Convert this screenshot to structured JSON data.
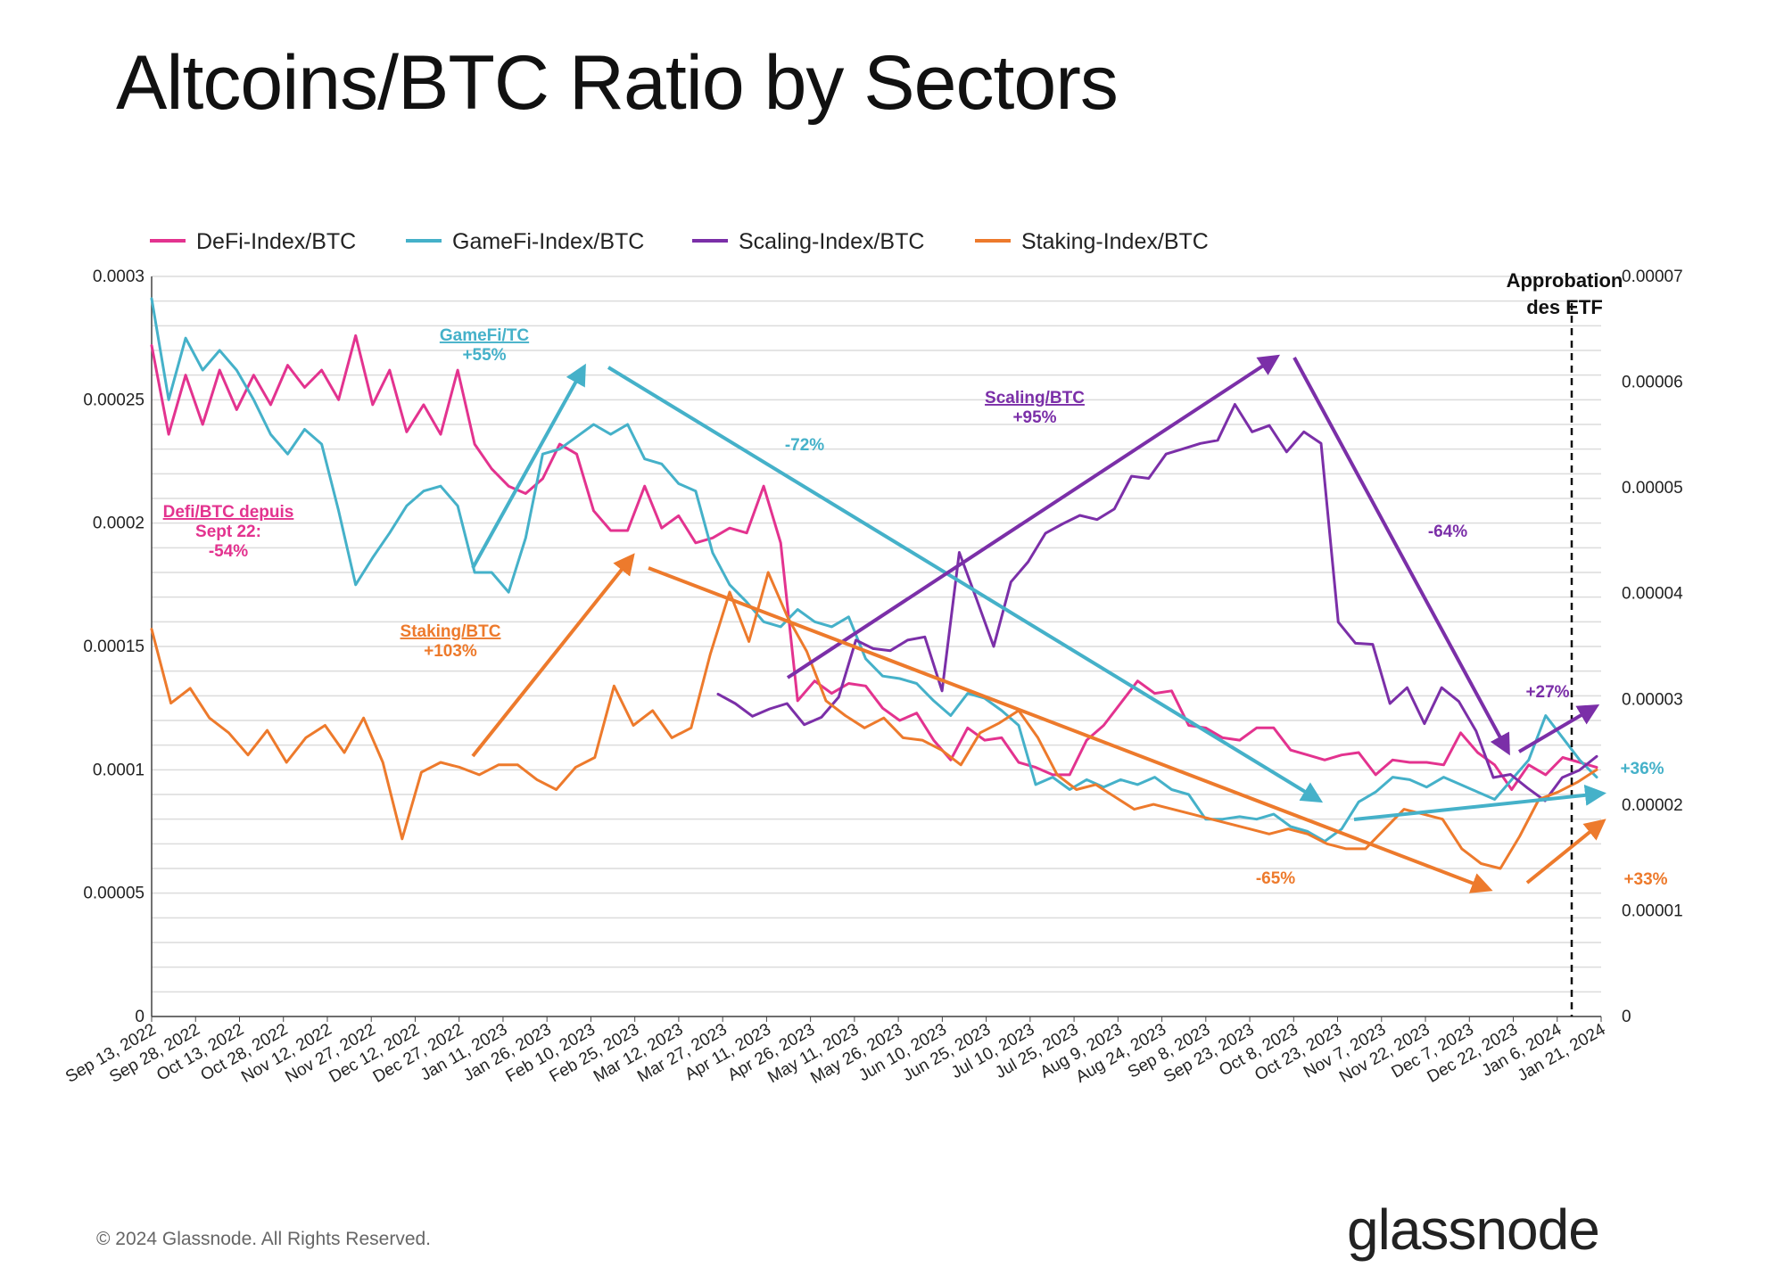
{
  "title": "Altcoins/BTC Ratio by Sectors",
  "footer": "© 2024 Glassnode. All Rights Reserved.",
  "logo": "glassnode",
  "chart_data": {
    "type": "line",
    "left_axis": {
      "ticks": [
        "0",
        "0.00005",
        "0.0001",
        "0.00015",
        "0.0002",
        "0.00025",
        "0.0003"
      ],
      "ylim": [
        0,
        0.0003
      ]
    },
    "right_axis": {
      "ticks": [
        "0",
        "0.00001",
        "0.00002",
        "0.00003",
        "0.00004",
        "0.00005",
        "0.00006",
        "0.00007"
      ],
      "ylim": [
        0,
        7e-05
      ]
    },
    "x_ticks": [
      "Sep 13, 2022",
      "Sep 28, 2022",
      "Oct 13, 2022",
      "Oct 28, 2022",
      "Nov 12, 2022",
      "Nov 27, 2022",
      "Dec 12, 2022",
      "Dec 27, 2022",
      "Jan 11, 2023",
      "Jan 26, 2023",
      "Feb 10, 2023",
      "Feb 25, 2023",
      "Mar 12, 2023",
      "Mar 27, 2023",
      "Apr 11, 2023",
      "Apr 26, 2023",
      "May 11, 2023",
      "May 26, 2023",
      "Jun 10, 2023",
      "Jun 25, 2023",
      "Jul 10, 2023",
      "Jul 25, 2023",
      "Aug 9, 2023",
      "Aug 24, 2023",
      "Sep 8, 2023",
      "Sep 23, 2023",
      "Oct 8, 2023",
      "Oct 23, 2023",
      "Nov 7, 2023",
      "Nov 22, 2023",
      "Dec 7, 2023",
      "Dec 22, 2023",
      "Jan 6, 2024",
      "Jan 21, 2024"
    ],
    "grid": true,
    "legend_position": "top-left",
    "series": [
      {
        "name": "DeFi-Index/BTC",
        "color": "#e3338f",
        "axis": "left",
        "values": [
          0.000272,
          0.000236,
          0.00026,
          0.00024,
          0.000262,
          0.000246,
          0.00026,
          0.000248,
          0.000264,
          0.000255,
          0.000262,
          0.00025,
          0.000276,
          0.000248,
          0.000262,
          0.000237,
          0.000248,
          0.000236,
          0.000262,
          0.000232,
          0.000222,
          0.000215,
          0.000212,
          0.000218,
          0.000232,
          0.000228,
          0.000205,
          0.000197,
          0.000197,
          0.000215,
          0.000198,
          0.000203,
          0.000192,
          0.000194,
          0.000198,
          0.000196,
          0.000215,
          0.000192,
          0.000128,
          0.000136,
          0.000131,
          0.000135,
          0.000134,
          0.000125,
          0.00012,
          0.000123,
          0.000112,
          0.000104,
          0.000117,
          0.000112,
          0.000113,
          0.000103,
          0.000101,
          9.8e-05,
          9.8e-05,
          0.000112,
          0.000118,
          0.000127,
          0.000136,
          0.000131,
          0.000132,
          0.000118,
          0.000117,
          0.000113,
          0.000112,
          0.000117,
          0.000117,
          0.000108,
          0.000106,
          0.000104,
          0.000106,
          0.000107,
          9.8e-05,
          0.000104,
          0.000103,
          0.000103,
          0.000102,
          0.000115,
          0.000107,
          0.000102,
          9.2e-05,
          0.000102,
          9.8e-05,
          0.000105,
          0.000103,
          0.000101
        ]
      },
      {
        "name": "GameFi-Index/BTC",
        "color": "#45b1c9",
        "axis": "left",
        "values": [
          0.000291,
          0.00025,
          0.000275,
          0.000262,
          0.00027,
          0.000262,
          0.00025,
          0.000236,
          0.000228,
          0.000238,
          0.000232,
          0.000205,
          0.000175,
          0.000186,
          0.000196,
          0.000207,
          0.000213,
          0.000215,
          0.000207,
          0.00018,
          0.00018,
          0.000172,
          0.000194,
          0.000228,
          0.00023,
          0.000235,
          0.00024,
          0.000236,
          0.00024,
          0.000226,
          0.000224,
          0.000216,
          0.000213,
          0.000188,
          0.000175,
          0.000168,
          0.00016,
          0.000158,
          0.000165,
          0.00016,
          0.000158,
          0.000162,
          0.000145,
          0.000138,
          0.000137,
          0.000135,
          0.000128,
          0.000122,
          0.000131,
          0.000129,
          0.000124,
          0.000118,
          9.4e-05,
          9.7e-05,
          9.2e-05,
          9.6e-05,
          9.3e-05,
          9.6e-05,
          9.4e-05,
          9.7e-05,
          9.2e-05,
          9e-05,
          8e-05,
          8e-05,
          8.1e-05,
          8e-05,
          8.2e-05,
          7.7e-05,
          7.5e-05,
          7.1e-05,
          7.6e-05,
          8.7e-05,
          9.1e-05,
          9.7e-05,
          9.6e-05,
          9.3e-05,
          9.7e-05,
          9.4e-05,
          9.1e-05,
          8.8e-05,
          9.6e-05,
          0.000104,
          0.000122,
          0.000113,
          0.000104,
          9.7e-05
        ]
      },
      {
        "name": "Scaling-Index/BTC",
        "color": "#7b2fa8",
        "axis": "right",
        "values": [
          3.05e-05,
          2.96e-05,
          2.84e-05,
          2.91e-05,
          2.96e-05,
          2.76e-05,
          2.83e-05,
          3.02e-05,
          3.56e-05,
          3.48e-05,
          3.46e-05,
          3.56e-05,
          3.59e-05,
          3.08e-05,
          4.39e-05,
          3.95e-05,
          3.5e-05,
          4.11e-05,
          4.3e-05,
          4.57e-05,
          4.66e-05,
          4.74e-05,
          4.7e-05,
          4.8e-05,
          5.11e-05,
          5.09e-05,
          5.32e-05,
          5.37e-05,
          5.42e-05,
          5.45e-05,
          5.79e-05,
          5.53e-05,
          5.59e-05,
          5.34e-05,
          5.53e-05,
          5.42e-05,
          3.73e-05,
          3.53e-05,
          3.52e-05,
          2.96e-05,
          3.11e-05,
          2.77e-05,
          3.11e-05,
          2.98e-05,
          2.7e-05,
          2.26e-05,
          2.29e-05,
          2.16e-05,
          2.04e-05,
          2.26e-05,
          2.33e-05,
          2.46e-05
        ]
      },
      {
        "name": "Staking-Index/BTC",
        "color": "#ed7a2c",
        "axis": "left",
        "values": [
          0.000157,
          0.000127,
          0.000133,
          0.000121,
          0.000115,
          0.000106,
          0.000116,
          0.000103,
          0.000113,
          0.000118,
          0.000107,
          0.000121,
          0.000103,
          7.2e-05,
          9.9e-05,
          0.000103,
          0.000101,
          9.8e-05,
          0.000102,
          0.000102,
          9.6e-05,
          9.2e-05,
          0.000101,
          0.000105,
          0.000134,
          0.000118,
          0.000124,
          0.000113,
          0.000117,
          0.000147,
          0.000172,
          0.000152,
          0.00018,
          0.000162,
          0.000148,
          0.000128,
          0.000122,
          0.000117,
          0.000121,
          0.000113,
          0.000112,
          0.000108,
          0.000102,
          0.000115,
          0.000119,
          0.000124,
          0.000113,
          9.8e-05,
          9.2e-05,
          9.4e-05,
          8.9e-05,
          8.4e-05,
          8.6e-05,
          8.4e-05,
          8.2e-05,
          8e-05,
          7.8e-05,
          7.6e-05,
          7.4e-05,
          7.6e-05,
          7.4e-05,
          7e-05,
          6.8e-05,
          6.8e-05,
          7.6e-05,
          8.4e-05,
          8.2e-05,
          8e-05,
          6.8e-05,
          6.2e-05,
          6e-05,
          7.3e-05,
          8.8e-05,
          9.1e-05,
          9.5e-05,
          0.0001
        ]
      }
    ],
    "annotations": [
      {
        "lines": [
          "GameFi/TC",
          "+55%"
        ],
        "color": "#45b1c9",
        "underline": true
      },
      {
        "lines": [
          "-72%"
        ],
        "color": "#45b1c9",
        "underline": false
      },
      {
        "lines": [
          "Scaling/BTC",
          "+95%"
        ],
        "color": "#7b2fa8",
        "underline": true
      },
      {
        "lines": [
          "-64%"
        ],
        "color": "#7b2fa8",
        "underline": false
      },
      {
        "lines": [
          "Defi/BTC depuis",
          "Sept 22:",
          "-54%"
        ],
        "color": "#e3338f",
        "underline": true
      },
      {
        "lines": [
          "Staking/BTC",
          "+103%"
        ],
        "color": "#ed7a2c",
        "underline": true
      },
      {
        "lines": [
          "-65%"
        ],
        "color": "#ed7a2c",
        "underline": false
      },
      {
        "lines": [
          "+27%"
        ],
        "color": "#7b2fa8",
        "underline": false
      },
      {
        "lines": [
          "+36%"
        ],
        "color": "#45b1c9",
        "underline": false
      },
      {
        "lines": [
          "+33%"
        ],
        "color": "#ed7a2c",
        "underline": false
      }
    ],
    "etf_label": [
      "Approbation",
      "des ETF"
    ]
  }
}
